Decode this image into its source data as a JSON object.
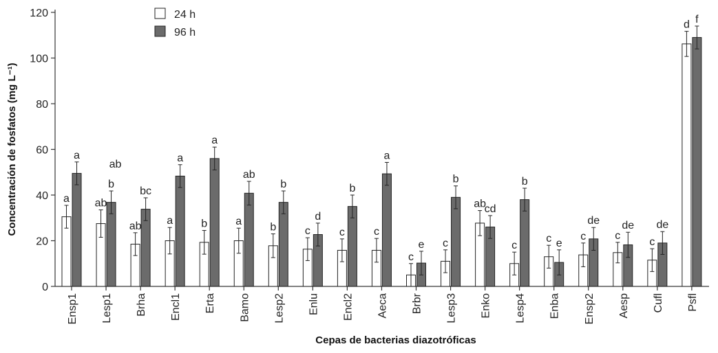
{
  "chart_data": {
    "type": "bar",
    "title": "",
    "xlabel": "Cepas de bacterias diazotróficas",
    "ylabel": "Concentración de fosfatos (mg L⁻¹)",
    "ylim": [
      0,
      120
    ],
    "yticks": [
      "0",
      "20",
      "40",
      "60",
      "80",
      "100",
      "120"
    ],
    "legend_position": "top-left",
    "categories": [
      "Ensp1",
      "Lesp1",
      "Brha",
      "Encl1",
      "Erta",
      "Bamo",
      "Lesp2",
      "Enlu",
      "Encl2",
      "Aeca",
      "Brbr",
      "Lesp3",
      "Enko",
      "Lesp4",
      "Enba",
      "Ensp2",
      "Aesp",
      "Cufl",
      "Psfl"
    ],
    "series": [
      {
        "name": "24 h",
        "color": "#ffffff",
        "values": [
          30.5,
          27.5,
          18.5,
          20.0,
          19.3,
          20.0,
          17.8,
          16.3,
          15.8,
          15.8,
          5.0,
          11.0,
          27.7,
          10.0,
          13.0,
          13.8,
          14.8,
          11.5,
          106.2
        ],
        "errors": [
          5.0,
          6.0,
          5.0,
          5.8,
          5.2,
          5.5,
          5.2,
          5.0,
          5.0,
          5.2,
          5.0,
          5.0,
          5.5,
          5.0,
          5.0,
          5.2,
          4.5,
          5.0,
          5.5
        ],
        "labels": [
          "a",
          "ab",
          "ab",
          "a",
          "b",
          "a",
          "b",
          "c",
          "c",
          "c",
          "c",
          "c",
          "ab",
          "c",
          "c",
          "c",
          "c",
          "c",
          "d"
        ]
      },
      {
        "name": "96 h",
        "color": "#6b6b6b",
        "values": [
          49.5,
          36.8,
          33.8,
          48.3,
          56.0,
          40.8,
          36.8,
          22.7,
          35.0,
          49.3,
          10.2,
          39.0,
          26.0,
          38.0,
          10.5,
          20.8,
          18.2,
          19.0,
          109.0
        ],
        "errors": [
          5.0,
          5.0,
          5.0,
          5.0,
          5.0,
          5.2,
          5.0,
          5.0,
          5.0,
          5.0,
          5.2,
          5.0,
          5.0,
          5.0,
          5.5,
          5.0,
          5.5,
          5.0,
          5.0
        ],
        "labels": [
          "a",
          "b",
          "bc",
          "a",
          "a",
          "ab",
          "b",
          "d",
          "b",
          "a",
          "e",
          "b",
          "cd",
          "b",
          "e",
          "de",
          "de",
          "de",
          "f"
        ]
      }
    ],
    "extra_labels": [
      {
        "text": "ab",
        "category": "Lesp1",
        "y": 52
      }
    ]
  }
}
